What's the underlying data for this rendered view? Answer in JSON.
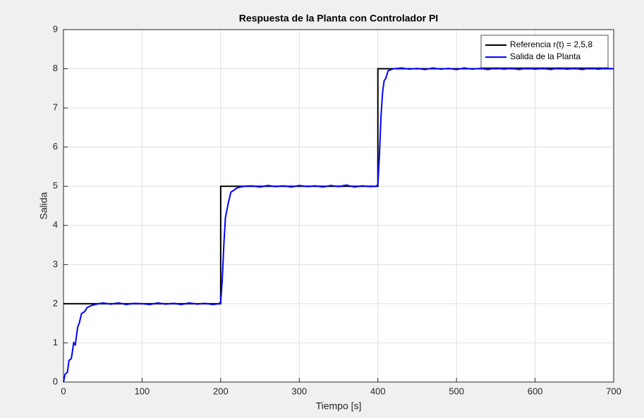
{
  "chart_data": {
    "type": "line",
    "title": "Respuesta de la Planta con Controlador PI",
    "xlabel": "Tiempo [s]",
    "ylabel": "Salida",
    "xlim": [
      0,
      700
    ],
    "ylim": [
      0,
      9
    ],
    "xticks": [
      0,
      100,
      200,
      300,
      400,
      500,
      600,
      700
    ],
    "yticks": [
      0,
      1,
      2,
      3,
      4,
      5,
      6,
      7,
      8,
      9
    ],
    "grid": true,
    "legend": "upper right",
    "series": [
      {
        "name": "Referencia r(t) = 2,5,8",
        "color": "#000000",
        "x": [
          0,
          200,
          200,
          400,
          400,
          700
        ],
        "values": [
          2,
          2,
          5,
          5,
          8,
          8
        ]
      },
      {
        "name": "Salida de la Planta",
        "color": "#0000ff",
        "x": [
          0,
          2,
          5,
          7,
          10,
          13,
          15,
          18,
          20,
          23,
          27,
          30,
          35,
          40,
          45,
          50,
          60,
          70,
          80,
          90,
          100,
          110,
          120,
          130,
          140,
          150,
          160,
          170,
          180,
          190,
          198,
          200,
          202,
          204,
          206,
          208,
          210,
          213,
          217,
          220,
          225,
          230,
          240,
          250,
          260,
          270,
          280,
          290,
          300,
          310,
          320,
          330,
          340,
          350,
          360,
          370,
          380,
          390,
          398,
          400,
          402,
          404,
          406,
          408,
          410,
          413,
          417,
          420,
          430,
          440,
          450,
          460,
          470,
          480,
          490,
          500,
          510,
          520,
          530,
          540,
          550,
          560,
          570,
          580,
          590,
          600,
          610,
          620,
          630,
          640,
          650,
          660,
          670,
          680,
          690,
          700
        ],
        "values": [
          0,
          0.2,
          0.25,
          0.55,
          0.6,
          1.0,
          0.95,
          1.4,
          1.5,
          1.75,
          1.8,
          1.9,
          1.95,
          1.98,
          2.0,
          2.02,
          1.99,
          2.02,
          1.98,
          2.01,
          2.0,
          1.98,
          2.02,
          1.99,
          2.01,
          1.98,
          2.02,
          1.99,
          2.01,
          1.98,
          2.0,
          2.05,
          2.6,
          3.5,
          4.2,
          4.4,
          4.6,
          4.85,
          4.9,
          4.95,
          4.98,
          5.0,
          5.01,
          4.98,
          5.02,
          4.99,
          5.01,
          4.98,
          5.02,
          4.99,
          5.01,
          4.98,
          5.02,
          4.99,
          5.03,
          4.98,
          5.01,
          4.99,
          5.0,
          5.05,
          5.8,
          6.8,
          7.4,
          7.7,
          7.75,
          7.95,
          7.98,
          8.0,
          8.02,
          7.99,
          8.01,
          7.98,
          8.02,
          7.99,
          8.01,
          7.98,
          8.02,
          7.99,
          8.01,
          7.98,
          8.02,
          7.99,
          8.01,
          7.98,
          8.02,
          7.99,
          8.01,
          7.98,
          8.02,
          7.99,
          8.01,
          7.98,
          8.02,
          7.99,
          8.01,
          8.0
        ]
      }
    ]
  }
}
